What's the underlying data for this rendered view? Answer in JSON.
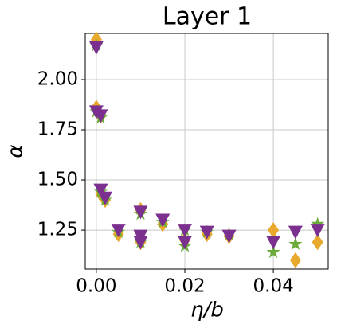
{
  "chart_data": {
    "type": "scatter",
    "title": "Layer 1",
    "xlabel": "η/b",
    "ylabel": "α",
    "xlim": [
      -0.0025,
      0.0524
    ],
    "ylim": [
      1.056,
      2.23
    ],
    "xticks": [
      {
        "value": 0,
        "label": "0.00"
      },
      {
        "value": 0.02,
        "label": "0.02"
      },
      {
        "value": 0.04,
        "label": "0.04"
      }
    ],
    "yticks": [
      1.25,
      {
        "value": 1.5,
        "label": "1.50"
      },
      1.75,
      {
        "value": 2,
        "label": "2.00"
      }
    ],
    "grid": true,
    "series": [
      {
        "color": "#e8a92c",
        "marker": "diamond",
        "x": [
          0,
          0,
          0.001,
          0.001,
          0.002,
          0.005,
          0.01,
          0.01,
          0.015,
          0.02,
          0.025,
          0.03,
          0.04,
          0.045,
          0.05
        ],
        "values": [
          2.2,
          1.86,
          1.82,
          1.43,
          1.4,
          1.23,
          1.35,
          1.19,
          1.28,
          1.2,
          1.23,
          1.22,
          1.25,
          1.1,
          1.19
        ]
      },
      {
        "color": "#6aab3a",
        "marker": "star",
        "x": [
          0,
          0,
          0.001,
          0.001,
          0.002,
          0.005,
          0.01,
          0.01,
          0.015,
          0.02,
          0.02,
          0.025,
          0.03,
          0.04,
          0.045,
          0.05
        ],
        "values": [
          2.17,
          1.84,
          1.81,
          1.44,
          1.4,
          1.24,
          1.33,
          1.19,
          1.29,
          1.25,
          1.17,
          1.24,
          1.23,
          1.14,
          1.18,
          1.28
        ]
      },
      {
        "color": "#7b2f8e",
        "marker": "triangle-down",
        "x": [
          0,
          0,
          0.001,
          0.001,
          0.002,
          0.005,
          0.01,
          0.01,
          0.01,
          0.015,
          0.02,
          0.02,
          0.025,
          0.03,
          0.04,
          0.045,
          0.05
        ],
        "values": [
          2.16,
          1.84,
          1.82,
          1.45,
          1.41,
          1.25,
          1.34,
          1.22,
          1.19,
          1.3,
          1.25,
          1.19,
          1.24,
          1.22,
          1.19,
          1.24,
          1.25
        ]
      }
    ]
  }
}
